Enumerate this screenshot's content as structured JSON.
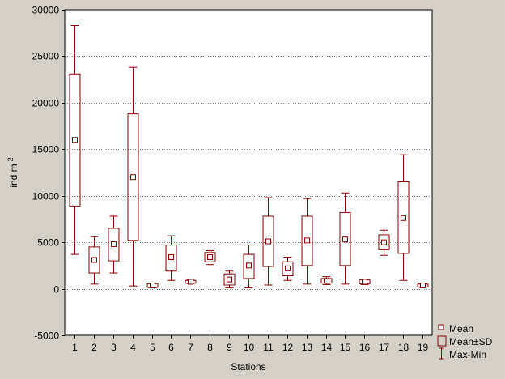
{
  "chart_data": {
    "type": "box",
    "xlabel": "Stations",
    "ylabel_text": "ind m",
    "ylabel_sup": "-2",
    "ylim": [
      -5000,
      30000
    ],
    "yticks": [
      -5000,
      0,
      5000,
      10000,
      15000,
      20000,
      25000,
      30000
    ],
    "grid": "horizontal dotted",
    "legend_position": "bottom-right",
    "legend": [
      "Mean",
      "Mean±SD",
      "Max-Min"
    ],
    "categories": [
      "1",
      "2",
      "3",
      "4",
      "5",
      "6",
      "7",
      "8",
      "9",
      "10",
      "11",
      "12",
      "13",
      "14",
      "15",
      "16",
      "17",
      "18",
      "19"
    ],
    "stats": [
      {
        "mean": 16000,
        "sd_low": 8900,
        "sd_high": 23100,
        "min": 3700,
        "max": 28300
      },
      {
        "mean": 3100,
        "sd_low": 1700,
        "sd_high": 4500,
        "min": 500,
        "max": 5600
      },
      {
        "mean": 4800,
        "sd_low": 3000,
        "sd_high": 6500,
        "min": 1700,
        "max": 7800
      },
      {
        "mean": 12000,
        "sd_low": 5200,
        "sd_high": 18800,
        "min": 300,
        "max": 23800
      },
      {
        "mean": 350,
        "sd_low": 150,
        "sd_high": 550,
        "min": 100,
        "max": 600
      },
      {
        "mean": 3400,
        "sd_low": 1900,
        "sd_high": 4700,
        "min": 900,
        "max": 5700
      },
      {
        "mean": 750,
        "sd_low": 600,
        "sd_high": 900,
        "min": 550,
        "max": 1000
      },
      {
        "mean": 3400,
        "sd_low": 2900,
        "sd_high": 3900,
        "min": 2600,
        "max": 4100
      },
      {
        "mean": 1000,
        "sd_low": 400,
        "sd_high": 1600,
        "min": 100,
        "max": 1900
      },
      {
        "mean": 2500,
        "sd_low": 1100,
        "sd_high": 3700,
        "min": 100,
        "max": 4700
      },
      {
        "mean": 5100,
        "sd_low": 2400,
        "sd_high": 7800,
        "min": 400,
        "max": 9800
      },
      {
        "mean": 2200,
        "sd_low": 1400,
        "sd_high": 2900,
        "min": 900,
        "max": 3400
      },
      {
        "mean": 5200,
        "sd_low": 2500,
        "sd_high": 7800,
        "min": 500,
        "max": 9700
      },
      {
        "mean": 850,
        "sd_low": 600,
        "sd_high": 1100,
        "min": 450,
        "max": 1300
      },
      {
        "mean": 5300,
        "sd_low": 2500,
        "sd_high": 8200,
        "min": 500,
        "max": 10300
      },
      {
        "mean": 750,
        "sd_low": 550,
        "sd_high": 950,
        "min": 450,
        "max": 1050
      },
      {
        "mean": 5000,
        "sd_low": 4200,
        "sd_high": 5800,
        "min": 3600,
        "max": 6300
      },
      {
        "mean": 7600,
        "sd_low": 3800,
        "sd_high": 11500,
        "min": 900,
        "max": 14400
      },
      {
        "mean": 350,
        "sd_low": 200,
        "sd_high": 500,
        "min": 150,
        "max": 550
      }
    ],
    "colors": {
      "series": "#800000",
      "background": "#d4d0c8",
      "plot_area": "#ffffff",
      "grid": "#808080"
    }
  }
}
